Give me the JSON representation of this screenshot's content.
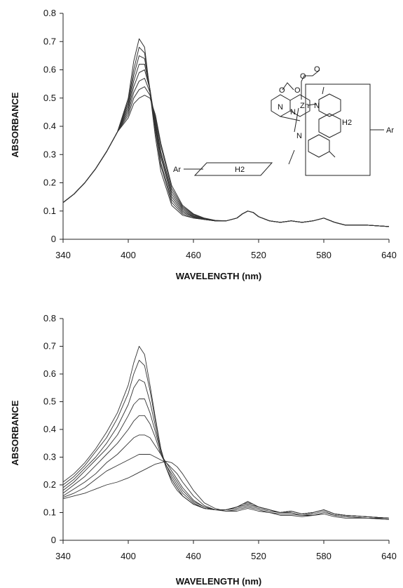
{
  "chart_data": [
    {
      "type": "line",
      "title": "",
      "xlabel": "WAVELENGTH (nm)",
      "ylabel": "ABSORBANCE",
      "xlim": [
        340,
        640
      ],
      "ylim": [
        0,
        0.8
      ],
      "x_ticks": [
        "340",
        "400",
        "460",
        "520",
        "580",
        "640"
      ],
      "y_ticks": [
        "0",
        "0.1",
        "0.2",
        "0.3",
        "0.4",
        "0.5",
        "0.6",
        "0.7",
        "0.8"
      ],
      "grid": false,
      "legend": "none",
      "x": [
        340,
        350,
        360,
        370,
        380,
        390,
        400,
        405,
        410,
        415,
        420,
        425,
        430,
        440,
        450,
        460,
        470,
        480,
        490,
        500,
        505,
        510,
        515,
        520,
        530,
        540,
        550,
        560,
        570,
        580,
        590,
        600,
        620,
        640
      ],
      "series": [
        {
          "values": [
            0.13,
            0.16,
            0.2,
            0.25,
            0.31,
            0.38,
            0.5,
            0.63,
            0.71,
            0.68,
            0.52,
            0.36,
            0.24,
            0.12,
            0.085,
            0.075,
            0.07,
            0.065,
            0.065,
            0.075,
            0.09,
            0.1,
            0.095,
            0.08,
            0.065,
            0.06,
            0.065,
            0.06,
            0.065,
            0.075,
            0.06,
            0.05,
            0.05,
            0.045
          ]
        },
        {
          "values": [
            0.13,
            0.16,
            0.2,
            0.25,
            0.31,
            0.38,
            0.49,
            0.6,
            0.68,
            0.66,
            0.53,
            0.38,
            0.26,
            0.13,
            0.09,
            0.075,
            0.07,
            0.065,
            0.065,
            0.075,
            0.09,
            0.1,
            0.095,
            0.08,
            0.065,
            0.06,
            0.065,
            0.06,
            0.065,
            0.075,
            0.06,
            0.05,
            0.05,
            0.045
          ]
        },
        {
          "values": [
            0.13,
            0.16,
            0.2,
            0.25,
            0.31,
            0.38,
            0.48,
            0.58,
            0.65,
            0.64,
            0.53,
            0.39,
            0.27,
            0.14,
            0.095,
            0.078,
            0.07,
            0.065,
            0.065,
            0.075,
            0.09,
            0.1,
            0.095,
            0.08,
            0.065,
            0.06,
            0.065,
            0.06,
            0.065,
            0.075,
            0.06,
            0.05,
            0.05,
            0.045
          ]
        },
        {
          "values": [
            0.13,
            0.16,
            0.2,
            0.25,
            0.31,
            0.38,
            0.47,
            0.56,
            0.62,
            0.62,
            0.53,
            0.4,
            0.29,
            0.15,
            0.1,
            0.08,
            0.07,
            0.065,
            0.065,
            0.075,
            0.09,
            0.1,
            0.095,
            0.08,
            0.065,
            0.06,
            0.065,
            0.06,
            0.065,
            0.075,
            0.06,
            0.05,
            0.05,
            0.045
          ]
        },
        {
          "values": [
            0.13,
            0.16,
            0.2,
            0.25,
            0.31,
            0.38,
            0.46,
            0.54,
            0.59,
            0.6,
            0.53,
            0.41,
            0.3,
            0.16,
            0.105,
            0.082,
            0.072,
            0.065,
            0.065,
            0.075,
            0.09,
            0.1,
            0.095,
            0.08,
            0.065,
            0.06,
            0.065,
            0.06,
            0.065,
            0.075,
            0.06,
            0.05,
            0.05,
            0.045
          ]
        },
        {
          "values": [
            0.13,
            0.16,
            0.2,
            0.25,
            0.31,
            0.38,
            0.45,
            0.52,
            0.56,
            0.57,
            0.52,
            0.42,
            0.31,
            0.17,
            0.11,
            0.085,
            0.073,
            0.065,
            0.065,
            0.075,
            0.09,
            0.1,
            0.095,
            0.08,
            0.065,
            0.06,
            0.065,
            0.06,
            0.065,
            0.075,
            0.06,
            0.05,
            0.05,
            0.045
          ]
        },
        {
          "values": [
            0.13,
            0.16,
            0.2,
            0.25,
            0.31,
            0.38,
            0.44,
            0.5,
            0.53,
            0.54,
            0.51,
            0.43,
            0.33,
            0.18,
            0.115,
            0.088,
            0.074,
            0.066,
            0.065,
            0.075,
            0.09,
            0.1,
            0.095,
            0.08,
            0.065,
            0.06,
            0.065,
            0.06,
            0.065,
            0.075,
            0.06,
            0.05,
            0.05,
            0.045
          ]
        },
        {
          "values": [
            0.13,
            0.16,
            0.2,
            0.25,
            0.31,
            0.38,
            0.43,
            0.48,
            0.5,
            0.51,
            0.5,
            0.44,
            0.34,
            0.19,
            0.12,
            0.09,
            0.075,
            0.067,
            0.065,
            0.075,
            0.09,
            0.1,
            0.095,
            0.08,
            0.065,
            0.06,
            0.065,
            0.06,
            0.065,
            0.075,
            0.06,
            0.05,
            0.05,
            0.045
          ]
        }
      ],
      "inset_structure": {
        "labels": [
          "Ar",
          "H2",
          "Zn",
          "N",
          "N",
          "N",
          "N",
          "O",
          "O",
          "O",
          "O",
          "H2",
          "Ar"
        ]
      }
    },
    {
      "type": "line",
      "title": "",
      "xlabel": "WAVELENGTH (nm)",
      "ylabel": "ABSORBANCE",
      "xlim": [
        340,
        640
      ],
      "ylim": [
        0,
        0.8
      ],
      "x_ticks": [
        "340",
        "400",
        "460",
        "520",
        "580",
        "640"
      ],
      "y_ticks": [
        "0",
        "0.1",
        "0.2",
        "0.3",
        "0.4",
        "0.5",
        "0.6",
        "0.7",
        "0.8"
      ],
      "grid": false,
      "legend": "none",
      "x": [
        340,
        350,
        360,
        370,
        380,
        390,
        400,
        405,
        410,
        415,
        420,
        425,
        430,
        435,
        440,
        445,
        450,
        460,
        470,
        480,
        490,
        500,
        505,
        510,
        515,
        520,
        530,
        540,
        550,
        560,
        570,
        580,
        590,
        600,
        620,
        640
      ],
      "series": [
        {
          "values": [
            0.21,
            0.24,
            0.28,
            0.33,
            0.39,
            0.46,
            0.56,
            0.64,
            0.7,
            0.67,
            0.56,
            0.44,
            0.33,
            0.26,
            0.21,
            0.18,
            0.16,
            0.13,
            0.115,
            0.11,
            0.11,
            0.12,
            0.13,
            0.14,
            0.13,
            0.12,
            0.11,
            0.1,
            0.105,
            0.095,
            0.1,
            0.11,
            0.095,
            0.09,
            0.085,
            0.08
          ]
        },
        {
          "values": [
            0.2,
            0.23,
            0.27,
            0.32,
            0.37,
            0.44,
            0.53,
            0.6,
            0.65,
            0.63,
            0.54,
            0.43,
            0.33,
            0.26,
            0.22,
            0.19,
            0.16,
            0.13,
            0.115,
            0.11,
            0.11,
            0.12,
            0.13,
            0.14,
            0.13,
            0.12,
            0.11,
            0.1,
            0.105,
            0.095,
            0.1,
            0.11,
            0.095,
            0.09,
            0.085,
            0.08
          ]
        },
        {
          "values": [
            0.19,
            0.22,
            0.26,
            0.3,
            0.35,
            0.41,
            0.49,
            0.55,
            0.58,
            0.57,
            0.5,
            0.41,
            0.32,
            0.26,
            0.22,
            0.19,
            0.16,
            0.13,
            0.115,
            0.11,
            0.11,
            0.12,
            0.13,
            0.135,
            0.13,
            0.12,
            0.11,
            0.1,
            0.105,
            0.095,
            0.1,
            0.11,
            0.095,
            0.09,
            0.085,
            0.08
          ]
        },
        {
          "values": [
            0.18,
            0.21,
            0.25,
            0.29,
            0.33,
            0.38,
            0.45,
            0.49,
            0.51,
            0.51,
            0.46,
            0.39,
            0.32,
            0.27,
            0.23,
            0.2,
            0.17,
            0.135,
            0.115,
            0.11,
            0.11,
            0.12,
            0.125,
            0.13,
            0.125,
            0.12,
            0.11,
            0.1,
            0.105,
            0.095,
            0.1,
            0.11,
            0.095,
            0.09,
            0.085,
            0.08
          ]
        },
        {
          "values": [
            0.17,
            0.2,
            0.23,
            0.27,
            0.31,
            0.35,
            0.4,
            0.43,
            0.45,
            0.45,
            0.42,
            0.37,
            0.31,
            0.27,
            0.24,
            0.21,
            0.18,
            0.14,
            0.12,
            0.11,
            0.11,
            0.12,
            0.125,
            0.13,
            0.125,
            0.12,
            0.11,
            0.1,
            0.105,
            0.095,
            0.1,
            0.11,
            0.095,
            0.09,
            0.085,
            0.08
          ]
        },
        {
          "values": [
            0.16,
            0.185,
            0.21,
            0.24,
            0.28,
            0.31,
            0.35,
            0.37,
            0.38,
            0.38,
            0.37,
            0.34,
            0.31,
            0.28,
            0.25,
            0.22,
            0.19,
            0.145,
            0.12,
            0.11,
            0.11,
            0.115,
            0.12,
            0.125,
            0.12,
            0.115,
            0.105,
            0.1,
            0.1,
            0.09,
            0.095,
            0.105,
            0.09,
            0.085,
            0.08,
            0.08
          ]
        },
        {
          "values": [
            0.155,
            0.17,
            0.19,
            0.22,
            0.25,
            0.27,
            0.29,
            0.3,
            0.31,
            0.31,
            0.31,
            0.3,
            0.29,
            0.28,
            0.26,
            0.24,
            0.21,
            0.16,
            0.125,
            0.11,
            0.105,
            0.11,
            0.115,
            0.12,
            0.115,
            0.11,
            0.1,
            0.095,
            0.095,
            0.09,
            0.09,
            0.1,
            0.09,
            0.085,
            0.08,
            0.075
          ]
        },
        {
          "values": [
            0.15,
            0.16,
            0.17,
            0.185,
            0.2,
            0.21,
            0.225,
            0.235,
            0.245,
            0.255,
            0.265,
            0.275,
            0.28,
            0.285,
            0.28,
            0.265,
            0.24,
            0.18,
            0.135,
            0.115,
            0.105,
            0.105,
            0.11,
            0.115,
            0.11,
            0.105,
            0.1,
            0.09,
            0.09,
            0.085,
            0.09,
            0.095,
            0.085,
            0.08,
            0.08,
            0.075
          ]
        }
      ]
    }
  ]
}
